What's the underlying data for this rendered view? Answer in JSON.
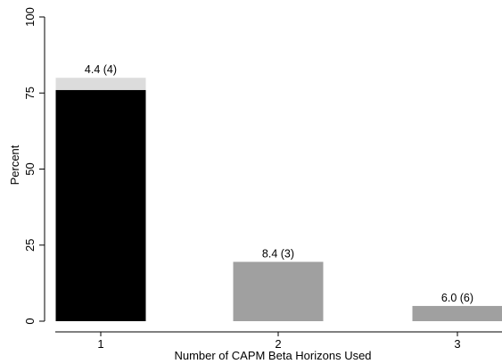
{
  "chart_data": {
    "type": "bar",
    "title": "",
    "xlabel": "Number of CAPM Beta Horizons Used",
    "ylabel": "Percent",
    "ylim": [
      0,
      100
    ],
    "yticks": [
      0,
      25,
      50,
      75,
      100
    ],
    "categories": [
      "1",
      "2",
      "3"
    ],
    "series": [
      {
        "values": [
          76,
          19.5,
          5
        ],
        "color": "#000000"
      },
      {
        "values": [
          4,
          0,
          0
        ],
        "color": "#dcdcdc"
      }
    ],
    "bar_colors": [
      "#000000",
      "#a0a0a0",
      "#a0a0a0"
    ],
    "stack_color": "#dcdcdc",
    "data_labels": [
      "4.4 (4)",
      "8.4 (3)",
      "6.0 (6)"
    ],
    "grid": false,
    "legend": "none"
  }
}
